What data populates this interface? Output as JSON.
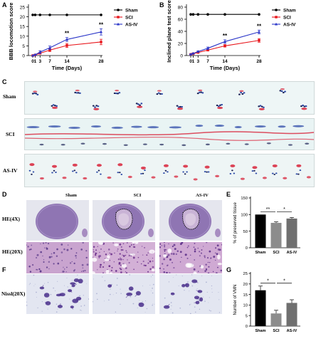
{
  "panels": {
    "A": "A",
    "B": "B",
    "C": "C",
    "D": "D",
    "E": "E",
    "F": "F",
    "G": "G"
  },
  "groups": [
    "Sham",
    "SCI",
    "AS-IV"
  ],
  "colors": {
    "sham": "#000000",
    "sci": "#e8151b",
    "asiv": "#2a35c8",
    "bar_sham": "#000000",
    "bar_sci": "#8c8c8c",
    "bar_asiv": "#6f6f6f"
  },
  "stats": {
    "double": "**",
    "single": "*"
  },
  "panel_C": {
    "rows": [
      "Sham",
      "SCI",
      "AS-IV"
    ]
  },
  "panel_D": {
    "columns": [
      "Sham",
      "SCI",
      "AS-IV"
    ],
    "rows": [
      "HE(4X)",
      "HE(20X)"
    ]
  },
  "panel_F": {
    "rows": [
      "Nissl(20X)"
    ]
  },
  "chart_data": [
    {
      "id": "A",
      "type": "line",
      "xlabel": "Time (Days)",
      "ylabel": "BBB locomotion score",
      "x": [
        0,
        1,
        3,
        7,
        14,
        28
      ],
      "xticks": [
        "0",
        "1",
        "3",
        "7",
        "14",
        "28"
      ],
      "yticks": [
        0,
        5,
        10,
        15,
        20,
        25
      ],
      "ylim": [
        0,
        25
      ],
      "legend": "top-right",
      "series": [
        {
          "name": "Sham",
          "values": [
            21,
            21,
            21,
            21,
            21,
            21
          ],
          "err": [
            0,
            0,
            0,
            0,
            0,
            0
          ]
        },
        {
          "name": "SCI",
          "values": [
            0,
            0.3,
            1.2,
            2.8,
            5.2,
            7.0
          ],
          "err": [
            0,
            0.2,
            0.5,
            0.7,
            1.0,
            1.4
          ]
        },
        {
          "name": "AS-IV",
          "values": [
            0,
            0.4,
            1.8,
            4.0,
            8.3,
            12.2
          ],
          "err": [
            0,
            0.2,
            0.7,
            0.9,
            1.0,
            1.6
          ]
        }
      ],
      "annotations": [
        {
          "x": 14,
          "text": "**"
        },
        {
          "x": 28,
          "text": "**"
        }
      ]
    },
    {
      "id": "B",
      "type": "line",
      "xlabel": "Time (Days)",
      "ylabel": "Inclined plane test score",
      "x": [
        0,
        1,
        3,
        7,
        14,
        28
      ],
      "xticks": [
        "0",
        "1",
        "3",
        "7",
        "14",
        "28"
      ],
      "yticks": [
        0,
        20,
        40,
        60,
        80
      ],
      "ylim": [
        0,
        80
      ],
      "legend": "top-right",
      "series": [
        {
          "name": "Sham",
          "values": [
            68,
            68,
            68,
            68,
            68,
            68
          ],
          "err": [
            0,
            0,
            0,
            0,
            0,
            0
          ]
        },
        {
          "name": "SCI",
          "values": [
            2,
            3,
            5,
            9,
            16,
            25
          ],
          "err": [
            0.5,
            0.8,
            1.0,
            1.5,
            2.0,
            3.0
          ]
        },
        {
          "name": "AS-IV",
          "values": [
            2,
            3.5,
            6.5,
            12,
            23,
            39
          ],
          "err": [
            0.5,
            0.8,
            1.2,
            2.0,
            3.0,
            3.0
          ]
        }
      ],
      "annotations": [
        {
          "x": 14,
          "text": "**"
        },
        {
          "x": 28,
          "text": "**"
        }
      ]
    },
    {
      "id": "E",
      "type": "bar",
      "ylabel": "% of preserved tissue",
      "categories": [
        "Sham",
        "SCI",
        "AS-IV"
      ],
      "values": [
        100,
        75,
        88
      ],
      "err": [
        0,
        3,
        3
      ],
      "yticks": [
        0,
        50,
        100,
        150
      ],
      "ylim": [
        0,
        150
      ],
      "significance": [
        {
          "from": 0,
          "to": 1,
          "text": "**"
        },
        {
          "from": 1,
          "to": 2,
          "text": "*"
        }
      ]
    },
    {
      "id": "G",
      "type": "bar",
      "ylabel": "Number of VMN",
      "categories": [
        "Sham",
        "SCI",
        "AS-IV"
      ],
      "values": [
        17,
        6,
        11
      ],
      "err": [
        2.0,
        1.5,
        1.5
      ],
      "yticks": [
        0,
        5,
        10,
        15,
        20,
        25
      ],
      "ylim": [
        0,
        25
      ],
      "significance": [
        {
          "from": 0,
          "to": 1,
          "text": "*"
        },
        {
          "from": 1,
          "to": 2,
          "text": "*"
        }
      ]
    }
  ]
}
